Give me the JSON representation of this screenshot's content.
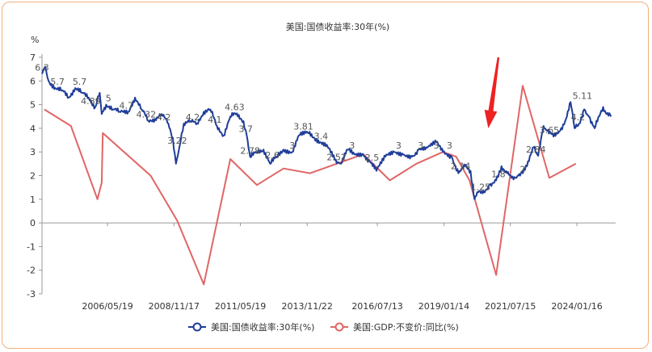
{
  "chart_data": {
    "type": "line",
    "title": "美国:国债收益率:30年(%)",
    "ylabel": "%",
    "ylim": [
      -3,
      7
    ],
    "yticks": [
      -3,
      -2,
      -1,
      0,
      1,
      2,
      3,
      4,
      5,
      6,
      7
    ],
    "xlim": [
      "2003-12-01",
      "2025-07-01"
    ],
    "xticks": [
      "2006/05/19",
      "2008/11/17",
      "2011/05/19",
      "2013/11/22",
      "2016/07/13",
      "2019/01/14",
      "2021/07/15",
      "2024/01/16"
    ],
    "grid": false,
    "legend_position": "bottom",
    "series": [
      {
        "name": "美国:国债收益率:30年(%)",
        "color": "#1f3d99",
        "points": [
          [
            "2003-12-01",
            6.3
          ],
          [
            "2004-01-15",
            6.6
          ],
          [
            "2004-03-01",
            6.0
          ],
          [
            "2004-06-01",
            5.7
          ],
          [
            "2004-09-01",
            5.6
          ],
          [
            "2004-12-01",
            5.3
          ],
          [
            "2005-03-01",
            5.7
          ],
          [
            "2005-06-01",
            5.5
          ],
          [
            "2005-09-01",
            5.3
          ],
          [
            "2005-12-01",
            4.89
          ],
          [
            "2006-02-01",
            5.5
          ],
          [
            "2006-03-01",
            4.6
          ],
          [
            "2006-05-01",
            5.0
          ],
          [
            "2006-08-01",
            4.8
          ],
          [
            "2006-11-01",
            4.7
          ],
          [
            "2007-03-01",
            4.7
          ],
          [
            "2007-06-01",
            5.3
          ],
          [
            "2007-09-01",
            4.8
          ],
          [
            "2007-12-01",
            4.32
          ],
          [
            "2008-03-01",
            4.4
          ],
          [
            "2008-06-01",
            4.6
          ],
          [
            "2008-09-01",
            4.2
          ],
          [
            "2008-11-01",
            3.6
          ],
          [
            "2008-12-15",
            2.5
          ],
          [
            "2009-02-01",
            3.22
          ],
          [
            "2009-04-01",
            4.2
          ],
          [
            "2009-07-01",
            4.3
          ],
          [
            "2009-10-01",
            4.2
          ],
          [
            "2010-01-01",
            4.7
          ],
          [
            "2010-04-01",
            4.8
          ],
          [
            "2010-07-01",
            4.1
          ],
          [
            "2010-10-01",
            3.7
          ],
          [
            "2011-01-01",
            4.5
          ],
          [
            "2011-04-01",
            4.63
          ],
          [
            "2011-07-01",
            4.3
          ],
          [
            "2011-08-15",
            3.7
          ],
          [
            "2011-10-01",
            2.78
          ],
          [
            "2012-01-01",
            3.0
          ],
          [
            "2012-04-01",
            3.1
          ],
          [
            "2012-07-01",
            2.5
          ],
          [
            "2012-10-01",
            2.8
          ],
          [
            "2013-01-01",
            3.1
          ],
          [
            "2013-05-01",
            3.0
          ],
          [
            "2013-08-01",
            3.7
          ],
          [
            "2013-12-01",
            3.81
          ],
          [
            "2014-03-01",
            3.6
          ],
          [
            "2014-06-01",
            3.4
          ],
          [
            "2014-09-01",
            3.2
          ],
          [
            "2015-01-01",
            2.52
          ],
          [
            "2015-03-01",
            2.5
          ],
          [
            "2015-06-01",
            3.1
          ],
          [
            "2015-09-01",
            2.9
          ],
          [
            "2016-01-01",
            2.9
          ],
          [
            "2016-04-01",
            2.6
          ],
          [
            "2016-07-01",
            2.2
          ],
          [
            "2016-11-01",
            2.8
          ],
          [
            "2017-03-01",
            3.0
          ],
          [
            "2017-07-01",
            2.9
          ],
          [
            "2017-11-01",
            2.8
          ],
          [
            "2018-02-01",
            3.1
          ],
          [
            "2018-05-01",
            3.1
          ],
          [
            "2018-10-01",
            3.4
          ],
          [
            "2019-01-01",
            3.0
          ],
          [
            "2019-05-01",
            2.8
          ],
          [
            "2019-08-01",
            2.1
          ],
          [
            "2019-11-01",
            2.4
          ],
          [
            "2020-01-15",
            2.2
          ],
          [
            "2020-03-09",
            1.0
          ],
          [
            "2020-04-15",
            1.3
          ],
          [
            "2020-07-01",
            1.25
          ],
          [
            "2020-10-01",
            1.6
          ],
          [
            "2021-01-01",
            1.8
          ],
          [
            "2021-03-15",
            2.4
          ],
          [
            "2021-06-01",
            2.1
          ],
          [
            "2021-08-01",
            1.9
          ],
          [
            "2021-11-01",
            2.0
          ],
          [
            "2022-01-01",
            2.1
          ],
          [
            "2022-03-01",
            2.4
          ],
          [
            "2022-06-01",
            3.2
          ],
          [
            "2022-08-01",
            2.84
          ],
          [
            "2022-10-15",
            4.1
          ],
          [
            "2022-12-01",
            3.9
          ],
          [
            "2023-03-01",
            3.65
          ],
          [
            "2023-06-01",
            3.9
          ],
          [
            "2023-09-01",
            4.5
          ],
          [
            "2023-10-20",
            5.11
          ],
          [
            "2023-12-15",
            4.0
          ],
          [
            "2024-02-15",
            4.2
          ],
          [
            "2024-04-25",
            4.8
          ],
          [
            "2024-07-01",
            4.5
          ],
          [
            "2024-09-15",
            4.0
          ],
          [
            "2024-12-01",
            4.6
          ],
          [
            "2025-01-10",
            4.9
          ],
          [
            "2025-03-01",
            4.6
          ],
          [
            "2025-05-01",
            4.5
          ]
        ]
      },
      {
        "name": "美国:GDP:不变价:同比(%)",
        "color": "#e06666",
        "points": [
          [
            "2004-01-01",
            4.8
          ],
          [
            "2005-01-01",
            4.1
          ],
          [
            "2006-01-01",
            1.0
          ],
          [
            "2006-03-01",
            1.7
          ],
          [
            "2006-03-15",
            3.8
          ],
          [
            "2008-01-01",
            2.0
          ],
          [
            "2009-01-01",
            0.1
          ],
          [
            "2010-01-01",
            -2.6
          ],
          [
            "2011-01-01",
            2.7
          ],
          [
            "2012-01-01",
            1.6
          ],
          [
            "2013-01-01",
            2.3
          ],
          [
            "2014-01-01",
            2.1
          ],
          [
            "2015-01-01",
            2.5
          ],
          [
            "2016-01-01",
            2.9
          ],
          [
            "2017-01-01",
            1.8
          ],
          [
            "2018-01-01",
            2.5
          ],
          [
            "2019-01-01",
            3.0
          ],
          [
            "2019-07-01",
            2.8
          ],
          [
            "2020-01-01",
            1.8
          ],
          [
            "2021-01-01",
            -2.2
          ],
          [
            "2022-01-01",
            5.8
          ],
          [
            "2023-01-01",
            1.9
          ],
          [
            "2024-01-01",
            2.5
          ]
        ]
      }
    ],
    "annotations": [
      {
        "text": "6.3",
        "x": "2003-12-01",
        "y": 6.3
      },
      {
        "text": "5.7",
        "x": "2004-07-01",
        "y": 5.7
      },
      {
        "text": "5.7",
        "x": "2005-05-01",
        "y": 5.7
      },
      {
        "text": "4.89",
        "x": "2005-10-01",
        "y": 4.89
      },
      {
        "text": "5",
        "x": "2006-06-01",
        "y": 5.0
      },
      {
        "text": "4.7",
        "x": "2007-02-01",
        "y": 4.7
      },
      {
        "text": "4.32",
        "x": "2007-11-01",
        "y": 4.32
      },
      {
        "text": "4.2",
        "x": "2008-07-01",
        "y": 4.2
      },
      {
        "text": "3.22",
        "x": "2009-01-01",
        "y": 3.22
      },
      {
        "text": "4.2",
        "x": "2009-08-01",
        "y": 4.2
      },
      {
        "text": "4.1",
        "x": "2010-06-01",
        "y": 4.1
      },
      {
        "text": "4.63",
        "x": "2011-03-01",
        "y": 4.63
      },
      {
        "text": "3.7",
        "x": "2011-08-01",
        "y": 3.7
      },
      {
        "text": "2.78",
        "x": "2011-10-01",
        "y": 2.78
      },
      {
        "text": "2.6",
        "x": "2012-08-01",
        "y": 2.6
      },
      {
        "text": "3",
        "x": "2013-05-01",
        "y": 3.0
      },
      {
        "text": "3.81",
        "x": "2013-10-01",
        "y": 3.81
      },
      {
        "text": "3.4",
        "x": "2014-06-01",
        "y": 3.4
      },
      {
        "text": "2.52",
        "x": "2015-01-01",
        "y": 2.52
      },
      {
        "text": "3",
        "x": "2015-08-01",
        "y": 3.0
      },
      {
        "text": "2.5",
        "x": "2016-05-01",
        "y": 2.5
      },
      {
        "text": "3",
        "x": "2017-05-01",
        "y": 3.0
      },
      {
        "text": "3",
        "x": "2018-03-01",
        "y": 3.0
      },
      {
        "text": "3",
        "x": "2018-10-01",
        "y": 3.0
      },
      {
        "text": "3",
        "x": "2019-04-01",
        "y": 3.0
      },
      {
        "text": "2.14",
        "x": "2019-09-01",
        "y": 2.14
      },
      {
        "text": "1.25",
        "x": "2020-06-01",
        "y": 1.25
      },
      {
        "text": "1.8",
        "x": "2021-02-01",
        "y": 1.8
      },
      {
        "text": "2",
        "x": "2022-01-01",
        "y": 2.0
      },
      {
        "text": "2.84",
        "x": "2022-07-01",
        "y": 2.84
      },
      {
        "text": "3.65",
        "x": "2023-01-01",
        "y": 3.65
      },
      {
        "text": "4.2",
        "x": "2024-02-01",
        "y": 4.2
      },
      {
        "text": "5.11",
        "x": "2024-04-01",
        "y": 5.11
      }
    ],
    "arrow": {
      "color": "#ee2222",
      "from": [
        "2021-02-01",
        7.0
      ],
      "to": [
        "2020-09-15",
        4.0
      ]
    }
  }
}
